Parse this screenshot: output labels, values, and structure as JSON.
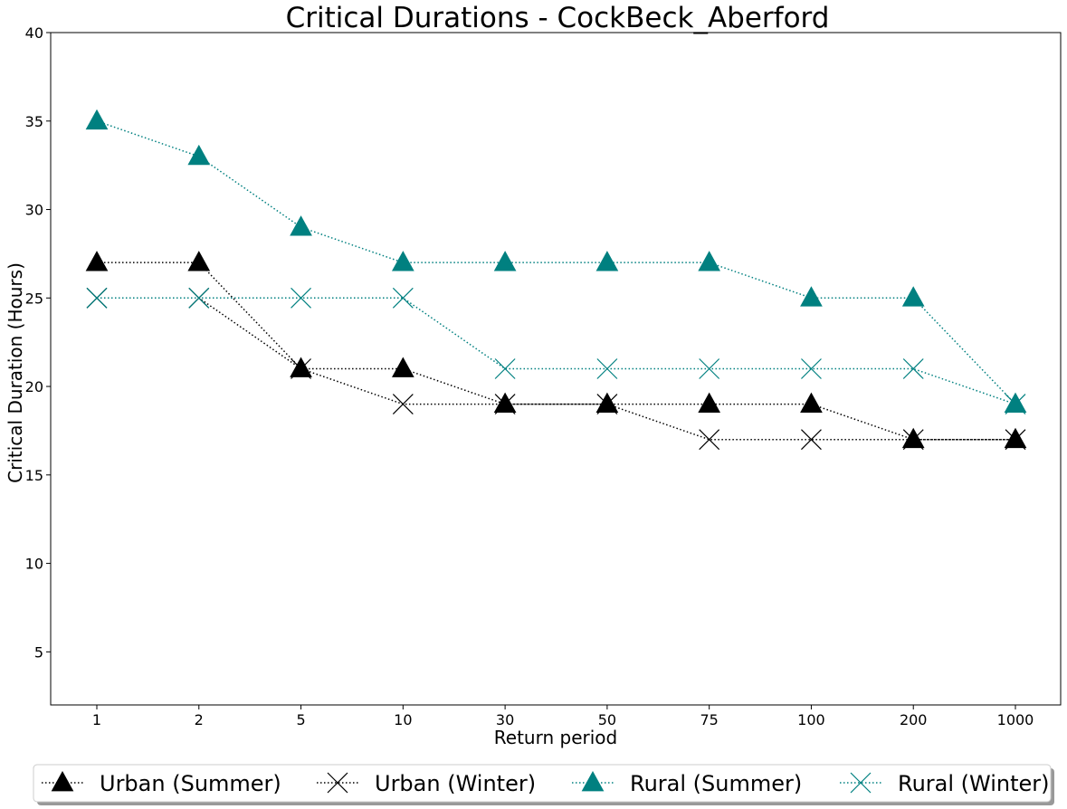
{
  "chart_data": {
    "type": "line",
    "title": "Critical Durations - CockBeck_Aberford",
    "xlabel": "Return period",
    "ylabel": "Critical Duration (Hours)",
    "categories": [
      "1",
      "2",
      "5",
      "10",
      "30",
      "50",
      "75",
      "100",
      "200",
      "1000"
    ],
    "ylim": [
      2,
      40
    ],
    "yticks": [
      5,
      10,
      15,
      20,
      25,
      30,
      35,
      40
    ],
    "grid": false,
    "legend_position": "bottom-center",
    "series": [
      {
        "name": "Urban (Summer)",
        "marker": "triangle",
        "color": "#000000",
        "values": [
          27,
          27,
          21,
          21,
          19,
          19,
          19,
          19,
          17,
          17
        ]
      },
      {
        "name": "Urban (Winter)",
        "marker": "x",
        "color": "#000000",
        "values": [
          25,
          25,
          21,
          19,
          19,
          19,
          17,
          17,
          17,
          17
        ]
      },
      {
        "name": "Rural (Summer)",
        "marker": "triangle",
        "color": "#008080",
        "values": [
          35,
          33,
          29,
          27,
          27,
          27,
          27,
          25,
          25,
          19
        ]
      },
      {
        "name": "Rural (Winter)",
        "marker": "x",
        "color": "#008080",
        "values": [
          25,
          25,
          25,
          25,
          21,
          21,
          21,
          21,
          21,
          19
        ]
      }
    ]
  }
}
